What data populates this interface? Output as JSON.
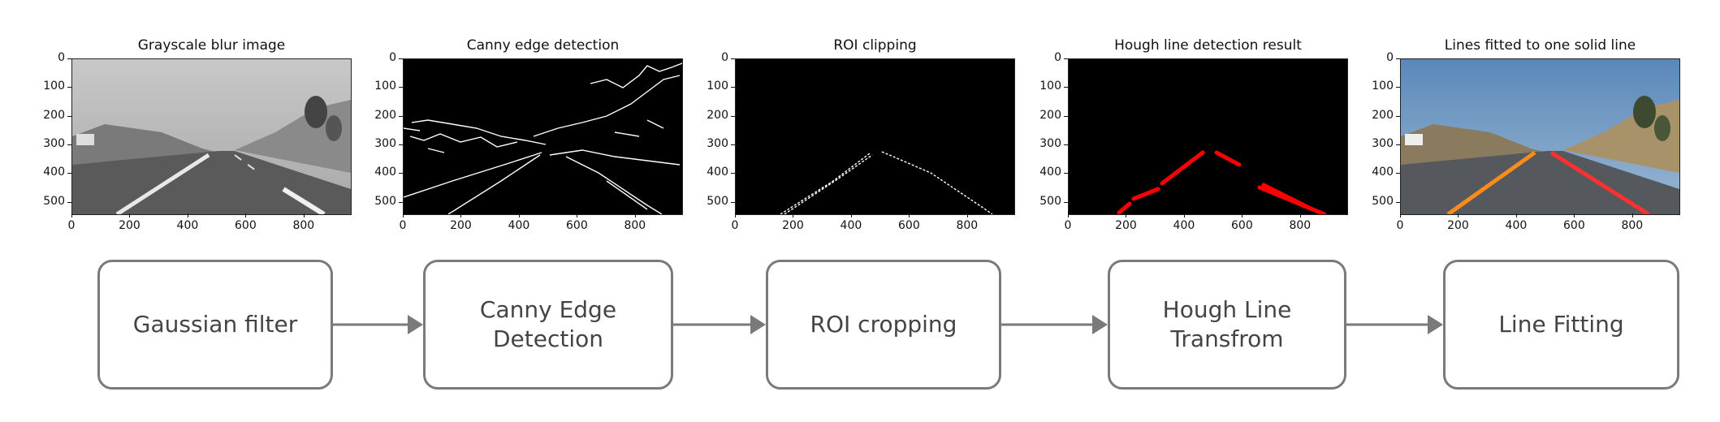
{
  "panels": [
    {
      "title": "Grayscale blur image"
    },
    {
      "title": "Canny edge detection"
    },
    {
      "title": "ROI clipping"
    },
    {
      "title": "Hough line detection result"
    },
    {
      "title": "Lines fitted to one solid line"
    }
  ],
  "axes": {
    "x_ticks": [
      "0",
      "200",
      "400",
      "600",
      "800"
    ],
    "y_ticks": [
      "0",
      "100",
      "200",
      "300",
      "400",
      "500"
    ]
  },
  "steps": [
    {
      "label": "Gaussian filter"
    },
    {
      "label": "Canny Edge\nDetection"
    },
    {
      "label": "ROI cropping"
    },
    {
      "label": "Hough Line\nTransfrom"
    },
    {
      "label": "Line Fitting"
    }
  ],
  "colors": {
    "box_border": "#7a7a7a",
    "arrow": "#7a7a7a",
    "hough_lines": "#ff0000",
    "fitted_line_left": "#ff8c1a",
    "fitted_line_right": "#ff3030",
    "sky": "#5a88b8"
  }
}
